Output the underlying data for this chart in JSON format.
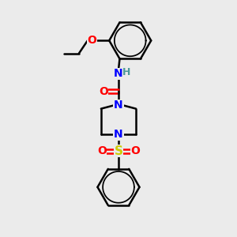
{
  "background_color": "#ebebeb",
  "bond_color": "#000000",
  "N_color": "#0000ff",
  "O_color": "#ff0000",
  "S_color": "#cccc00",
  "H_color": "#4d9999",
  "line_width": 1.8,
  "font_size": 10,
  "fig_size": [
    3.0,
    3.0
  ],
  "dpi": 100,
  "xlim": [
    0,
    10
  ],
  "ylim": [
    0,
    10
  ]
}
